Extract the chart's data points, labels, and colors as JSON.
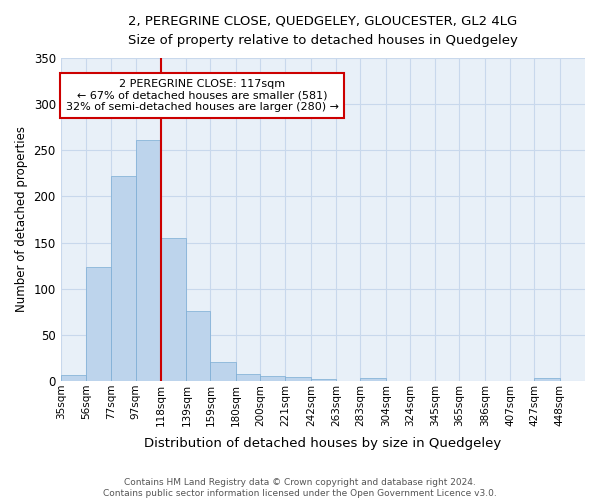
{
  "title": "2, PEREGRINE CLOSE, QUEDGELEY, GLOUCESTER, GL2 4LG",
  "subtitle": "Size of property relative to detached houses in Quedgeley",
  "xlabel": "Distribution of detached houses by size in Quedgeley",
  "ylabel": "Number of detached properties",
  "bin_labels": [
    "35sqm",
    "56sqm",
    "77sqm",
    "97sqm",
    "118sqm",
    "139sqm",
    "159sqm",
    "180sqm",
    "200sqm",
    "221sqm",
    "242sqm",
    "263sqm",
    "283sqm",
    "304sqm",
    "324sqm",
    "345sqm",
    "365sqm",
    "386sqm",
    "407sqm",
    "427sqm",
    "448sqm"
  ],
  "bar_heights": [
    6,
    123,
    222,
    261,
    155,
    76,
    21,
    8,
    5,
    4,
    2,
    0,
    3,
    0,
    0,
    0,
    0,
    0,
    0,
    3,
    0
  ],
  "bar_color": "#bdd4ec",
  "bar_edge_color": "#7aacd4",
  "grid_color": "#c8d8ec",
  "background_color": "#e8f0f8",
  "marker_label": "2 PEREGRINE CLOSE: 117sqm",
  "annotation_line1": "← 67% of detached houses are smaller (581)",
  "annotation_line2": "32% of semi-detached houses are larger (280) →",
  "annotation_box_color": "#ffffff",
  "annotation_box_edge": "#cc0000",
  "marker_line_color": "#cc0000",
  "ylim": [
    0,
    350
  ],
  "yticks": [
    0,
    50,
    100,
    150,
    200,
    250,
    300,
    350
  ],
  "bin_edges": [
    35,
    56,
    77,
    97,
    118,
    139,
    159,
    180,
    200,
    221,
    242,
    263,
    283,
    304,
    324,
    345,
    365,
    386,
    407,
    427,
    448,
    469
  ],
  "marker_bin_edge": 118,
  "footer1": "Contains HM Land Registry data © Crown copyright and database right 2024.",
  "footer2": "Contains public sector information licensed under the Open Government Licence v3.0."
}
